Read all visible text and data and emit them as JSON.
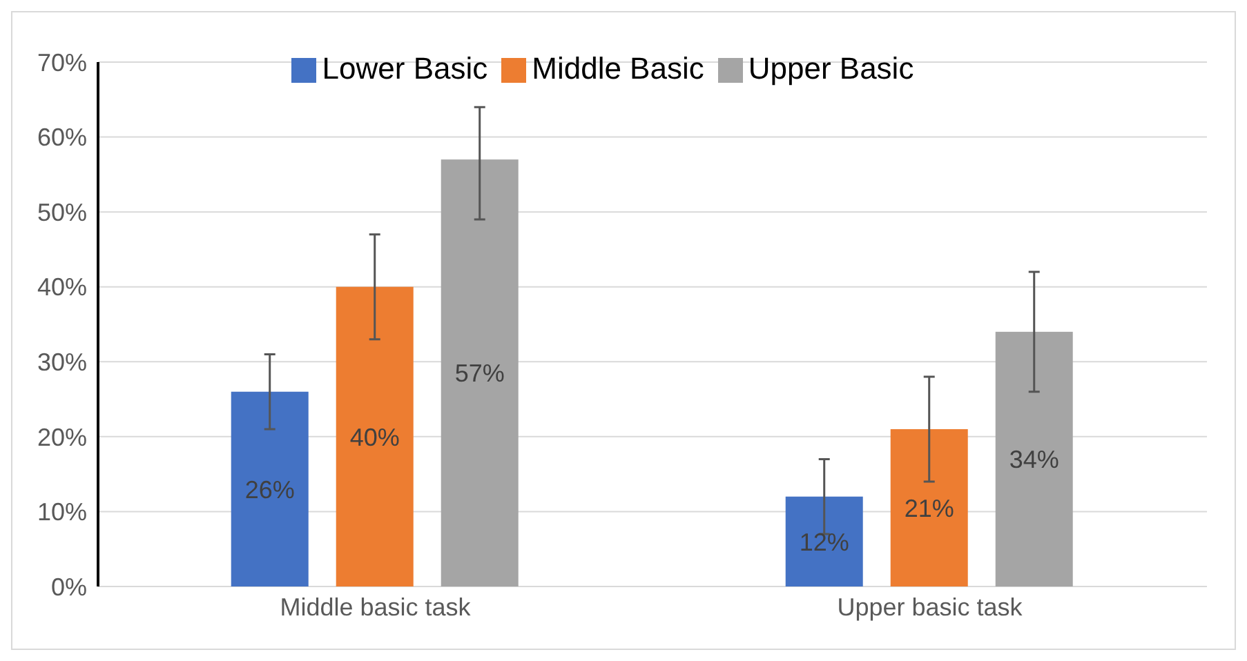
{
  "chart_data": {
    "type": "bar",
    "categories": [
      "Middle basic task",
      "Upper basic task"
    ],
    "series": [
      {
        "name": "Lower Basic",
        "color": "#4472c4",
        "values": [
          26,
          12
        ],
        "errors": [
          [
            21,
            31
          ],
          [
            7,
            17
          ]
        ],
        "value_labels": [
          "26%",
          "12%"
        ]
      },
      {
        "name": "Middle Basic",
        "color": "#ed7d31",
        "values": [
          40,
          21
        ],
        "errors": [
          [
            33,
            47
          ],
          [
            14,
            28
          ]
        ],
        "value_labels": [
          "40%",
          "21%"
        ]
      },
      {
        "name": "Upper Basic",
        "color": "#a5a5a5",
        "values": [
          57,
          34
        ],
        "errors": [
          [
            49,
            64
          ],
          [
            26,
            42
          ]
        ],
        "value_labels": [
          "57%",
          "34%"
        ]
      }
    ],
    "ylim": [
      0,
      70
    ],
    "yticks": [
      {
        "value": 0,
        "label": "0%"
      },
      {
        "value": 10,
        "label": "10%"
      },
      {
        "value": 20,
        "label": "20%"
      },
      {
        "value": 30,
        "label": "30%"
      },
      {
        "value": 40,
        "label": "40%"
      },
      {
        "value": 50,
        "label": "50%"
      },
      {
        "value": 60,
        "label": "60%"
      },
      {
        "value": 70,
        "label": "70%"
      }
    ],
    "grid": "y",
    "legend": "top"
  }
}
